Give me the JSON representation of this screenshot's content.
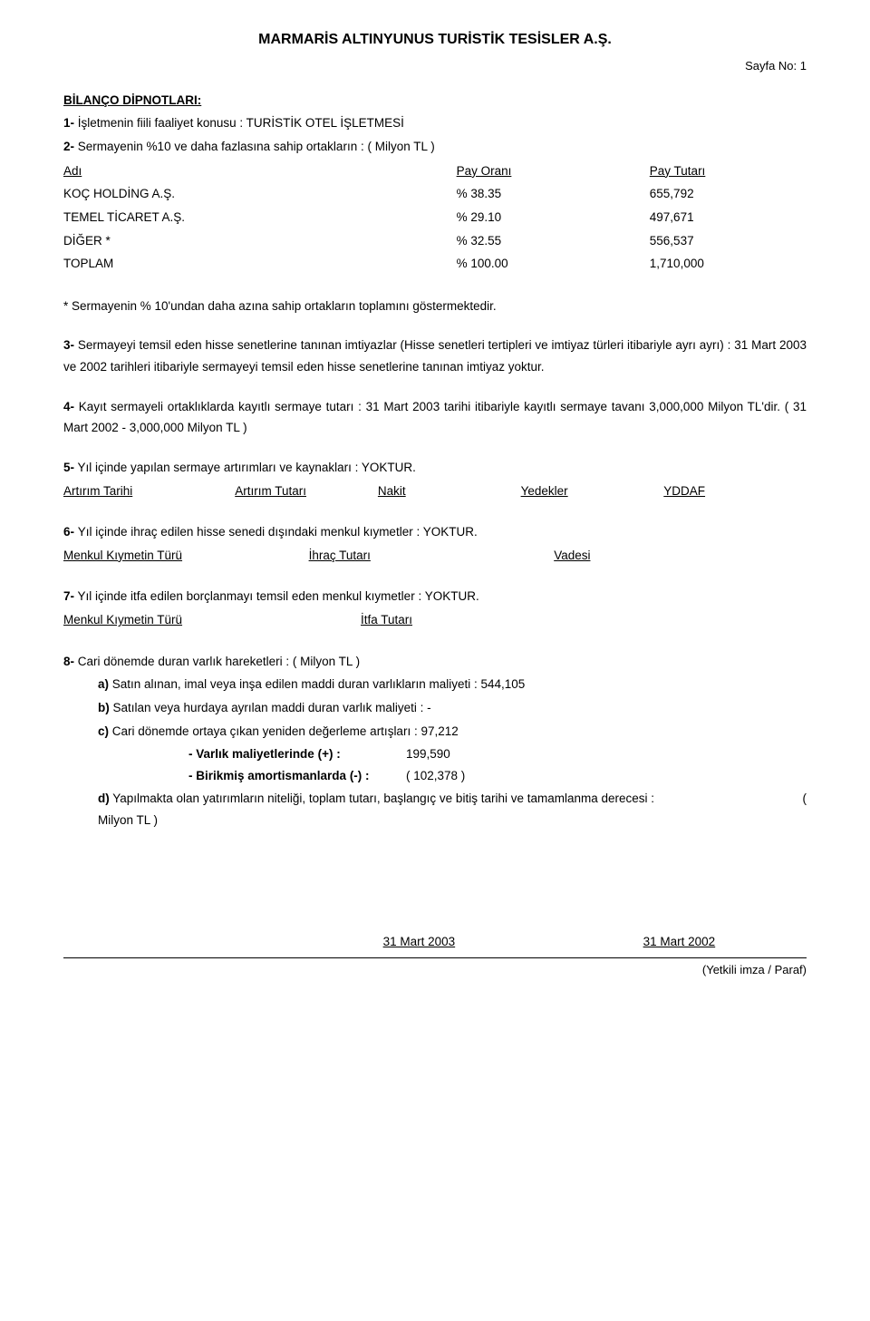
{
  "title": "MARMARİS ALTINYUNUS TURİSTİK TESİSLER A.Ş.",
  "page_no": "Sayfa No: 1",
  "heading": "BİLANÇO DİPNOTLARI:",
  "item1": {
    "label": "1-",
    "text": " İşletmenin fiili faaliyet konusu : TURİSTİK OTEL İŞLETMESİ"
  },
  "item2": {
    "label": "2-",
    "text": " Sermayenin %10 ve daha fazlasına sahip ortakların : ( Milyon TL )"
  },
  "share_table": {
    "headers": {
      "c1": "Adı",
      "c2": "Pay Oranı",
      "c3": "Pay Tutarı"
    },
    "rows": [
      {
        "c1": "KOÇ HOLDİNG A.Ş.",
        "c2": "% 38.35",
        "c3": "655,792"
      },
      {
        "c1": "TEMEL TİCARET A.Ş.",
        "c2": "% 29.10",
        "c3": "497,671"
      },
      {
        "c1": "DİĞER *",
        "c2": "% 32.55",
        "c3": "556,537"
      },
      {
        "c1": "TOPLAM",
        "c2": "% 100.00",
        "c3": "1,710,000"
      }
    ]
  },
  "footnote_star": "* Sermayenin % 10'undan daha azına sahip ortakların toplamını göstermektedir.",
  "item3": {
    "label": "3-",
    "text": " Sermayeyi temsil eden hisse senetlerine tanınan imtiyazlar (Hisse senetleri tertipleri ve imtiyaz türleri itibariyle ayrı ayrı) :  31 Mart 2003 ve 2002 tarihleri itibariyle sermayeyi temsil eden hisse senetlerine tanınan imtiyaz yoktur."
  },
  "item4": {
    "label": "4-",
    "text_a": " Kayıt sermayeli ortaklıklarda kayıtlı sermaye tutarı : 31 Mart 2003 tarihi itibariyle kayıtlı sermaye tavanı  3,000,000 Milyon TL'dir.  ( 31 Mart 2002  - 3,000,000 Milyon TL )"
  },
  "item5": {
    "label": "5-",
    "text": " Yıl içinde yapılan sermaye artırımları ve kaynakları : YOKTUR.",
    "headers": [
      "Artırım Tarihi",
      "Artırım Tutarı",
      "Nakit",
      "Yedekler",
      "YDDAF"
    ]
  },
  "item6": {
    "label": "6- ",
    "text": " Yıl içinde ihraç edilen hisse senedi dışındaki menkul kıymetler : YOKTUR.",
    "headers": [
      "Menkul Kıymetin Türü",
      "İhraç Tutarı",
      "Vadesi"
    ]
  },
  "item7": {
    "label": "7-",
    "text": " Yıl içinde itfa edilen borçlanmayı temsil eden menkul kıymetler : YOKTUR.",
    "headers": [
      "Menkul Kıymetin Türü",
      "İtfa Tutarı"
    ]
  },
  "item8": {
    "label": "8-",
    "text": " Cari dönemde duran varlık hareketleri :  ( Milyon TL )",
    "a": {
      "label": "a)",
      "text": " Satın alınan, imal veya inşa edilen maddi duran varlıkların maliyeti :  544,105"
    },
    "b": {
      "label": "b)",
      "text": " Satılan veya hurdaya ayrılan maddi duran varlık maliyeti :      -"
    },
    "c": {
      "label": "c)",
      "text": " Cari dönemde ortaya çıkan yeniden değerleme artışları :     97,212"
    },
    "c1": {
      "label": "- Varlık maliyetlerinde (+) :",
      "value": "199,590"
    },
    "c2": {
      "label": "- Birikmiş amortismanlarda (-) :",
      "value": "(   102,378  )"
    },
    "d_left": "d)",
    "d_mid": " Yapılmakta olan yatırımların niteliği, toplam tutarı, başlangıç ve bitiş tarihi ve tamamlanma derecesi :",
    "d_right": "(",
    "d_tail": "Milyon TL )"
  },
  "dates": {
    "d1": "31 Mart 2003",
    "d2": "31 Mart 2002"
  },
  "footer": "(Yetkili imza / Paraf)"
}
